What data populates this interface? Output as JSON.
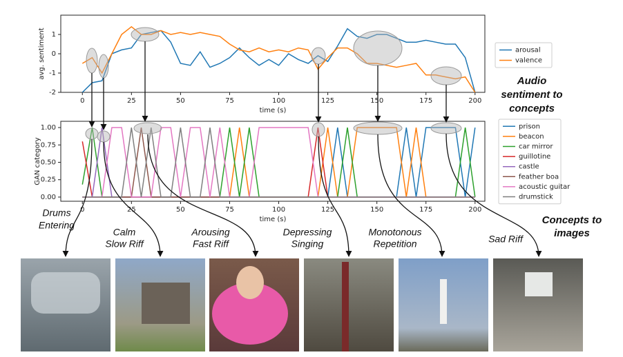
{
  "chart_data": [
    {
      "type": "line",
      "ylabel": "avg. sentiment",
      "xlabel": "time (s)",
      "x": [
        0,
        5,
        10,
        15,
        20,
        25,
        30,
        35,
        40,
        45,
        50,
        55,
        60,
        65,
        70,
        75,
        80,
        85,
        90,
        95,
        100,
        105,
        110,
        115,
        120,
        125,
        130,
        135,
        140,
        145,
        150,
        155,
        160,
        165,
        170,
        175,
        180,
        185,
        190,
        195,
        200
      ],
      "xlim": [
        -11,
        205
      ],
      "xticks": [
        0,
        25,
        50,
        75,
        100,
        125,
        150,
        175,
        200
      ],
      "ylim": [
        -2,
        2
      ],
      "yticks": [
        -2,
        -1,
        0,
        1
      ],
      "legend": "right",
      "series": [
        {
          "name": "arousal",
          "color": "#1f77b4",
          "values": [
            -2,
            -1.5,
            -1.4,
            0,
            0.2,
            0.3,
            1.0,
            1.1,
            1.2,
            0.6,
            -0.5,
            -0.6,
            0.1,
            -0.7,
            -0.5,
            -0.2,
            0.3,
            -0.2,
            -0.6,
            -0.3,
            -0.6,
            0,
            -0.3,
            -0.5,
            -0.1,
            -0.4,
            0.4,
            1.3,
            0.9,
            0.8,
            1.0,
            1.0,
            0.8,
            0.6,
            0.6,
            0.7,
            0.6,
            0.5,
            0.5,
            -0.2,
            -2
          ]
        },
        {
          "name": "valence",
          "color": "#ff7f0e",
          "values": [
            -0.5,
            -0.2,
            -1.0,
            0,
            1.0,
            1.4,
            1.0,
            1.0,
            1.2,
            1.0,
            1.1,
            1.0,
            1.1,
            1.0,
            0.9,
            0.5,
            0.2,
            0.1,
            0.3,
            0.1,
            0.2,
            0.1,
            0.3,
            0.2,
            -0.8,
            -0.2,
            0.3,
            0.3,
            0,
            -0.5,
            -0.5,
            -0.6,
            -0.7,
            -0.6,
            -0.5,
            -1.1,
            -1.1,
            -1.2,
            -1.3,
            -1.2,
            -2
          ]
        }
      ]
    },
    {
      "type": "line",
      "ylabel": "GAN category",
      "xlabel": "time (s)",
      "x": [
        0,
        5,
        10,
        15,
        20,
        25,
        30,
        35,
        40,
        45,
        50,
        55,
        60,
        65,
        70,
        75,
        80,
        85,
        90,
        95,
        100,
        105,
        110,
        115,
        120,
        125,
        130,
        135,
        140,
        145,
        150,
        155,
        160,
        165,
        170,
        175,
        180,
        185,
        190,
        195,
        200
      ],
      "xlim": [
        -11,
        205
      ],
      "xticks": [
        0,
        25,
        50,
        75,
        100,
        125,
        150,
        175,
        200
      ],
      "ylim": [
        -0.06,
        1.09
      ],
      "yticks": [
        {
          "value": 0,
          "label": "0.00"
        },
        {
          "value": 0.25,
          "label": "0.25"
        },
        {
          "value": 0.5,
          "label": "0.50"
        },
        {
          "value": 0.75,
          "label": "0.75"
        },
        {
          "value": 1,
          "label": "1.00"
        }
      ],
      "legend": "right",
      "series": [
        {
          "name": "prison",
          "color": "#1f77b4",
          "values": [
            0,
            0,
            0,
            0,
            0,
            0,
            0,
            0,
            0,
            0,
            0,
            0,
            0,
            0,
            0,
            0,
            0,
            0,
            0,
            0,
            0,
            0,
            0,
            0,
            0,
            0,
            1,
            0,
            0,
            0,
            0,
            0,
            0,
            1,
            0,
            1,
            1,
            1,
            1,
            0,
            1
          ]
        },
        {
          "name": "beacon",
          "color": "#ff7f0e",
          "values": [
            0,
            0,
            0,
            0,
            0,
            0,
            0,
            0,
            0,
            0,
            0,
            0,
            0,
            0,
            0,
            0,
            1,
            0,
            0,
            0,
            0,
            0,
            0,
            0,
            0,
            1,
            0,
            0,
            1,
            1,
            1,
            1,
            1,
            0,
            1,
            0,
            0,
            0,
            0,
            0,
            0
          ]
        },
        {
          "name": "car mirror",
          "color": "#2ca02c",
          "values": [
            0.18,
            1,
            0,
            0,
            0,
            0,
            0,
            0,
            0,
            0,
            0,
            0,
            0,
            0,
            0,
            1,
            0,
            1,
            0,
            0,
            0,
            0,
            0,
            0,
            0,
            0,
            0,
            1,
            0,
            0,
            0,
            0,
            0,
            0,
            0,
            0,
            0,
            0,
            0,
            1,
            0
          ]
        },
        {
          "name": "guillotine",
          "color": "#d62728",
          "values": [
            0.8,
            0,
            0,
            0,
            0,
            0,
            0,
            0,
            0,
            0,
            0,
            0,
            0,
            0,
            0,
            0,
            0,
            0,
            0,
            0,
            0,
            0,
            0,
            0,
            1,
            0,
            0,
            0,
            0,
            0,
            0,
            0,
            0,
            0,
            0,
            0,
            0,
            0,
            0,
            0,
            0
          ]
        },
        {
          "name": "castle",
          "color": "#9467bd",
          "values": [
            0,
            0,
            1,
            0,
            0,
            0,
            0,
            0,
            0,
            0,
            0,
            0,
            0,
            0,
            0,
            0,
            0,
            0,
            0,
            0,
            0,
            0,
            0,
            0,
            0,
            0,
            0,
            0,
            0,
            0,
            0,
            0,
            0,
            0,
            0,
            0,
            0,
            0,
            0,
            0,
            0
          ]
        },
        {
          "name": "feather boa",
          "color": "#8c564b",
          "values": [
            0,
            0,
            0,
            0,
            0,
            0,
            1,
            0,
            0,
            0,
            0,
            0,
            0,
            0,
            0,
            0,
            0,
            0,
            0,
            0,
            0,
            0,
            0,
            0,
            0,
            0,
            0,
            0,
            0,
            0,
            0,
            0,
            0,
            0,
            0,
            0,
            0,
            0,
            0,
            0,
            0
          ]
        },
        {
          "name": "acoustic guitar",
          "color": "#e377c2",
          "values": [
            0,
            0,
            0,
            1,
            1,
            0,
            0,
            0,
            1,
            1,
            0,
            1,
            1,
            0,
            1,
            0,
            0,
            0,
            1,
            1,
            1,
            1,
            1,
            1,
            0,
            0,
            0,
            0,
            0,
            0,
            0,
            0,
            0,
            0,
            0,
            0,
            0,
            0,
            0,
            0,
            0
          ]
        },
        {
          "name": "drumstick",
          "color": "#7f7f7f",
          "values": [
            0,
            0,
            0,
            0,
            0,
            1,
            0,
            1,
            0,
            0,
            1,
            0,
            0,
            1,
            0,
            0,
            0,
            0,
            0,
            0,
            0,
            0,
            0,
            0,
            0,
            0,
            0,
            0,
            0,
            0,
            0,
            0,
            0,
            0,
            0,
            0,
            0,
            0,
            0,
            0,
            0
          ]
        }
      ]
    }
  ],
  "annotations": [
    {
      "lines": [
        "Audio",
        "sentiment to",
        "concepts"
      ]
    },
    {
      "lines": [
        "Drums",
        "Entering"
      ]
    },
    {
      "lines": [
        "Calm",
        "Slow Riff"
      ]
    },
    {
      "lines": [
        "Arousing",
        "Fast Riff"
      ]
    },
    {
      "lines": [
        "Depressing",
        "Singing"
      ]
    },
    {
      "lines": [
        "Monotonous",
        "Repetition"
      ]
    },
    {
      "lines": [
        "Sad Riff"
      ]
    },
    {
      "lines": [
        "Concepts to",
        "images"
      ]
    }
  ]
}
